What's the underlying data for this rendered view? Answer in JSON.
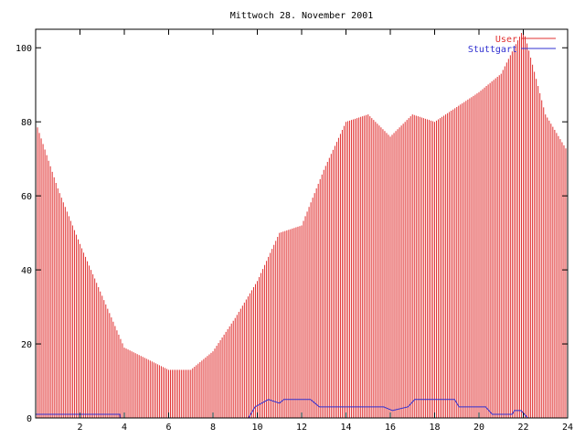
{
  "chart_data": {
    "type": "bar",
    "title": "Mittwoch 28. November 2001",
    "xlabel": "",
    "ylabel": "",
    "xlim": [
      0,
      24
    ],
    "ylim": [
      0,
      105
    ],
    "x_ticks": [
      2,
      4,
      6,
      8,
      10,
      12,
      14,
      16,
      18,
      20,
      22,
      24
    ],
    "y_ticks": [
      0,
      20,
      40,
      60,
      80,
      100
    ],
    "grid": false,
    "legend_position": "top-right",
    "series": [
      {
        "name": "User",
        "style": "impulses",
        "color": "#e03030",
        "x": [
          0,
          1,
          2,
          3,
          4,
          5,
          6,
          7,
          8,
          9,
          10,
          11,
          12,
          13,
          14,
          15,
          16,
          17,
          18,
          19,
          20,
          21,
          22,
          23,
          24
        ],
        "values": [
          80,
          62,
          47,
          33,
          19,
          16,
          13,
          13,
          18,
          27,
          37,
          50,
          52,
          67,
          80,
          82,
          76,
          82,
          80,
          84,
          88,
          93,
          105,
          82,
          72
        ]
      },
      {
        "name": "Stuttgart",
        "style": "steps",
        "color": "#3030d0",
        "x": [
          0,
          3.8,
          3.81,
          9.6,
          9.9,
          10.5,
          11.0,
          11.2,
          12.4,
          12.6,
          12.8,
          15.7,
          16.1,
          16.8,
          17.1,
          18.9,
          19.1,
          20.3,
          20.6,
          21.5,
          21.6,
          21.9,
          22.2,
          24.0
        ],
        "values": [
          1,
          1,
          0,
          0,
          3,
          5,
          4,
          5,
          5,
          4,
          3,
          3,
          2,
          3,
          5,
          5,
          3,
          3,
          1,
          1,
          2,
          2,
          0,
          0
        ]
      }
    ]
  }
}
